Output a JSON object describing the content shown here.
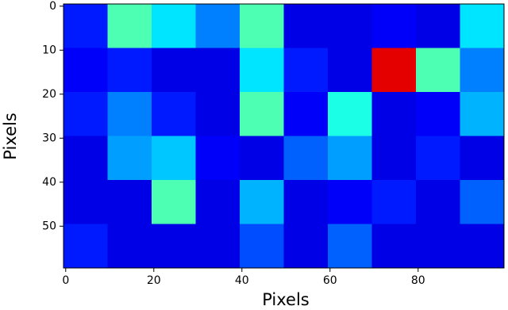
{
  "chart_data": {
    "type": "heatmap",
    "colormap": "jet",
    "clim": [
      0,
      1
    ],
    "xlabel": "Pixels",
    "ylabel": "Pixels",
    "xlim": [
      -0.5,
      99.5
    ],
    "ylim": [
      59.5,
      -0.5
    ],
    "xticks": [
      0,
      20,
      40,
      60,
      80
    ],
    "yticks": [
      0,
      10,
      20,
      30,
      40,
      50
    ],
    "z": [
      [
        0.15,
        0.45,
        0.35,
        0.25,
        0.45,
        0.1,
        0.1,
        0.12,
        0.1,
        0.35
      ],
      [
        0.12,
        0.15,
        0.1,
        0.1,
        0.35,
        0.15,
        0.1,
        0.9,
        0.45,
        0.25
      ],
      [
        0.15,
        0.25,
        0.15,
        0.1,
        0.45,
        0.12,
        0.4,
        0.1,
        0.12,
        0.3
      ],
      [
        0.1,
        0.28,
        0.32,
        0.12,
        0.1,
        0.22,
        0.28,
        0.1,
        0.15,
        0.1
      ],
      [
        0.1,
        0.1,
        0.45,
        0.1,
        0.3,
        0.1,
        0.12,
        0.15,
        0.1,
        0.22
      ],
      [
        0.15,
        0.1,
        0.1,
        0.1,
        0.2,
        0.1,
        0.22,
        0.1,
        0.1,
        0.1
      ]
    ]
  }
}
